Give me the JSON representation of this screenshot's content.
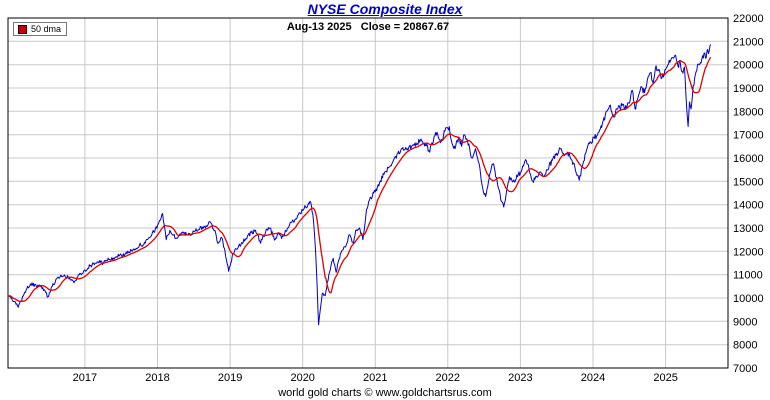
{
  "page": {
    "title": "NYSE Composite Index",
    "subtitle": "Aug-13 2025   Close = 20867.67",
    "footer": "world gold charts © www.goldchartsrus.com"
  },
  "legend": {
    "label": "50 dma",
    "color": "#cc0000"
  },
  "colors": {
    "price": "#0000cc",
    "ma": "#e00000",
    "grid": "#c8c8c8",
    "border": "#000000",
    "title": "#0000cc"
  },
  "chart_data": {
    "type": "line",
    "title": "NYSE Composite Index",
    "as_of_date": "Aug-13 2025",
    "close": 20867.67,
    "x_range": [
      2015.94,
      2025.86
    ],
    "ylim": [
      7000,
      22000
    ],
    "y_tick_step": 1000,
    "x_ticks": [
      2017,
      2018,
      2019,
      2020,
      2021,
      2022,
      2023,
      2024,
      2025
    ],
    "y_ticks": [
      7000,
      8000,
      9000,
      10000,
      11000,
      12000,
      13000,
      14000,
      15000,
      16000,
      17000,
      18000,
      19000,
      20000,
      21000,
      22000
    ],
    "grid": true,
    "legend_position": "top-left",
    "ma_window_years": 0.19,
    "series": [
      {
        "name": "NYSE Composite Index (daily close)",
        "color": "#0000cc",
        "points": [
          [
            2015.95,
            10100
          ],
          [
            2016.02,
            9850
          ],
          [
            2016.08,
            9600
          ],
          [
            2016.17,
            10250
          ],
          [
            2016.25,
            10600
          ],
          [
            2016.33,
            10500
          ],
          [
            2016.42,
            10450
          ],
          [
            2016.49,
            10050
          ],
          [
            2016.55,
            10500
          ],
          [
            2016.63,
            10900
          ],
          [
            2016.71,
            10950
          ],
          [
            2016.79,
            10850
          ],
          [
            2016.85,
            10650
          ],
          [
            2016.92,
            11000
          ],
          [
            2017.0,
            11200
          ],
          [
            2017.08,
            11400
          ],
          [
            2017.17,
            11550
          ],
          [
            2017.25,
            11500
          ],
          [
            2017.33,
            11650
          ],
          [
            2017.42,
            11750
          ],
          [
            2017.5,
            11850
          ],
          [
            2017.58,
            11900
          ],
          [
            2017.67,
            12100
          ],
          [
            2017.75,
            12250
          ],
          [
            2017.83,
            12350
          ],
          [
            2017.92,
            12700
          ],
          [
            2018.0,
            13100
          ],
          [
            2018.07,
            13620
          ],
          [
            2018.12,
            12500
          ],
          [
            2018.17,
            12900
          ],
          [
            2018.25,
            12550
          ],
          [
            2018.33,
            12800
          ],
          [
            2018.42,
            12700
          ],
          [
            2018.5,
            12850
          ],
          [
            2018.58,
            12950
          ],
          [
            2018.67,
            13100
          ],
          [
            2018.73,
            13250
          ],
          [
            2018.79,
            12900
          ],
          [
            2018.83,
            12350
          ],
          [
            2018.88,
            12600
          ],
          [
            2018.93,
            12000
          ],
          [
            2018.98,
            11150
          ],
          [
            2019.04,
            11900
          ],
          [
            2019.12,
            12250
          ],
          [
            2019.21,
            12500
          ],
          [
            2019.29,
            12800
          ],
          [
            2019.35,
            12900
          ],
          [
            2019.42,
            12350
          ],
          [
            2019.5,
            12950
          ],
          [
            2019.55,
            13000
          ],
          [
            2019.62,
            12500
          ],
          [
            2019.67,
            12800
          ],
          [
            2019.71,
            12550
          ],
          [
            2019.79,
            13000
          ],
          [
            2019.87,
            13300
          ],
          [
            2019.96,
            13650
          ],
          [
            2020.04,
            13900
          ],
          [
            2020.1,
            14150
          ],
          [
            2020.14,
            13600
          ],
          [
            2020.18,
            11900
          ],
          [
            2020.22,
            8850
          ],
          [
            2020.27,
            10200
          ],
          [
            2020.31,
            10100
          ],
          [
            2020.36,
            11000
          ],
          [
            2020.42,
            11700
          ],
          [
            2020.46,
            11100
          ],
          [
            2020.52,
            11900
          ],
          [
            2020.58,
            12200
          ],
          [
            2020.65,
            12700
          ],
          [
            2020.7,
            12350
          ],
          [
            2020.73,
            12900
          ],
          [
            2020.79,
            12950
          ],
          [
            2020.83,
            12500
          ],
          [
            2020.88,
            13800
          ],
          [
            2020.94,
            14300
          ],
          [
            2021.0,
            14550
          ],
          [
            2021.06,
            14950
          ],
          [
            2021.12,
            15300
          ],
          [
            2021.19,
            15600
          ],
          [
            2021.25,
            15900
          ],
          [
            2021.31,
            16200
          ],
          [
            2021.38,
            16450
          ],
          [
            2021.44,
            16400
          ],
          [
            2021.5,
            16500
          ],
          [
            2021.56,
            16650
          ],
          [
            2021.62,
            16750
          ],
          [
            2021.69,
            16600
          ],
          [
            2021.75,
            16250
          ],
          [
            2021.81,
            16900
          ],
          [
            2021.85,
            17100
          ],
          [
            2021.9,
            16650
          ],
          [
            2021.96,
            17150
          ],
          [
            2022.02,
            17350
          ],
          [
            2022.06,
            16600
          ],
          [
            2022.1,
            16400
          ],
          [
            2022.15,
            16900
          ],
          [
            2022.19,
            16500
          ],
          [
            2022.23,
            17000
          ],
          [
            2022.29,
            16600
          ],
          [
            2022.33,
            16000
          ],
          [
            2022.38,
            16400
          ],
          [
            2022.44,
            15600
          ],
          [
            2022.48,
            14700
          ],
          [
            2022.52,
            14350
          ],
          [
            2022.56,
            15000
          ],
          [
            2022.6,
            15600
          ],
          [
            2022.63,
            15750
          ],
          [
            2022.69,
            14800
          ],
          [
            2022.73,
            14200
          ],
          [
            2022.77,
            13900
          ],
          [
            2022.81,
            14600
          ],
          [
            2022.85,
            15200
          ],
          [
            2022.9,
            15000
          ],
          [
            2022.96,
            15200
          ],
          [
            2023.02,
            15500
          ],
          [
            2023.08,
            15900
          ],
          [
            2023.12,
            15500
          ],
          [
            2023.17,
            15000
          ],
          [
            2023.21,
            15200
          ],
          [
            2023.27,
            15400
          ],
          [
            2023.31,
            15200
          ],
          [
            2023.37,
            15500
          ],
          [
            2023.44,
            15900
          ],
          [
            2023.5,
            16200
          ],
          [
            2023.56,
            16400
          ],
          [
            2023.6,
            16100
          ],
          [
            2023.65,
            16250
          ],
          [
            2023.71,
            15900
          ],
          [
            2023.75,
            15600
          ],
          [
            2023.81,
            15050
          ],
          [
            2023.85,
            15600
          ],
          [
            2023.9,
            16200
          ],
          [
            2023.96,
            16700
          ],
          [
            2024.02,
            16850
          ],
          [
            2024.08,
            17100
          ],
          [
            2024.13,
            17500
          ],
          [
            2024.19,
            18000
          ],
          [
            2024.23,
            18250
          ],
          [
            2024.29,
            17750
          ],
          [
            2024.33,
            18100
          ],
          [
            2024.4,
            18250
          ],
          [
            2024.44,
            18100
          ],
          [
            2024.5,
            18350
          ],
          [
            2024.54,
            18900
          ],
          [
            2024.58,
            18100
          ],
          [
            2024.63,
            18700
          ],
          [
            2024.67,
            19050
          ],
          [
            2024.71,
            18800
          ],
          [
            2024.75,
            19350
          ],
          [
            2024.79,
            19650
          ],
          [
            2024.83,
            19200
          ],
          [
            2024.87,
            19950
          ],
          [
            2024.9,
            19750
          ],
          [
            2024.94,
            19400
          ],
          [
            2024.98,
            19550
          ],
          [
            2025.02,
            19900
          ],
          [
            2025.06,
            20100
          ],
          [
            2025.1,
            20300
          ],
          [
            2025.13,
            20400
          ],
          [
            2025.17,
            19950
          ],
          [
            2025.2,
            20150
          ],
          [
            2025.23,
            19700
          ],
          [
            2025.26,
            19900
          ],
          [
            2025.29,
            18200
          ],
          [
            2025.31,
            17350
          ],
          [
            2025.33,
            18400
          ],
          [
            2025.35,
            18100
          ],
          [
            2025.38,
            19100
          ],
          [
            2025.42,
            19700
          ],
          [
            2025.46,
            20000
          ],
          [
            2025.5,
            20250
          ],
          [
            2025.54,
            20500
          ],
          [
            2025.56,
            20300
          ],
          [
            2025.58,
            20650
          ],
          [
            2025.6,
            20550
          ],
          [
            2025.62,
            20867.67
          ]
        ]
      },
      {
        "name": "50 dma",
        "color": "#e00000",
        "derivation": "trailing 50-day moving average of the daily close series"
      }
    ]
  }
}
